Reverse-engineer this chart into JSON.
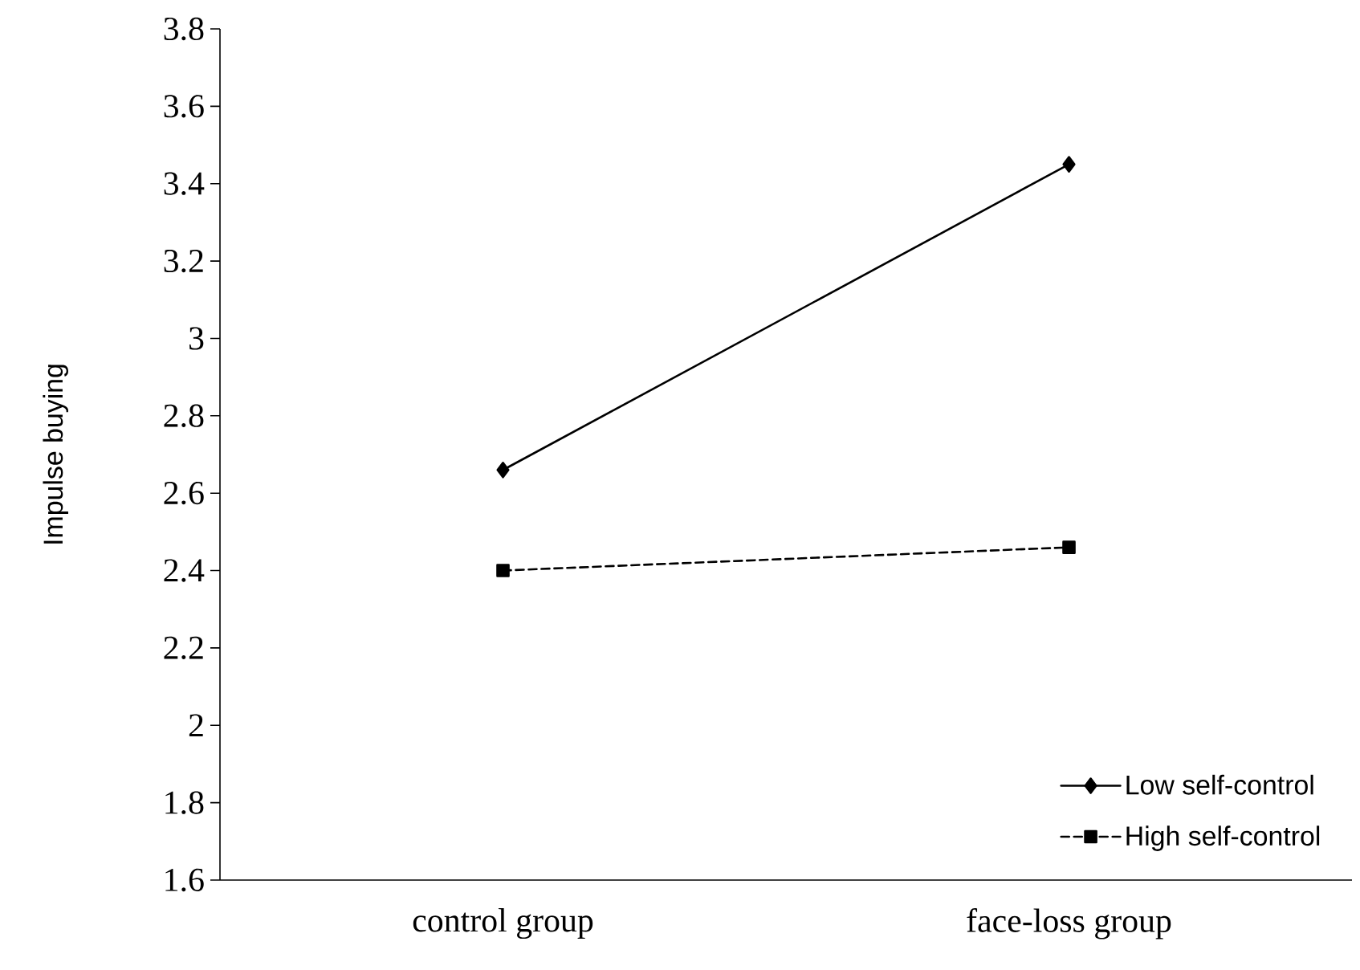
{
  "chart_data": {
    "type": "line",
    "ylabel": "Impulse buying",
    "categories": [
      "control group",
      "face-loss group"
    ],
    "series": [
      {
        "name": "Low self-control",
        "color": "#000000",
        "values": [
          2.66,
          3.45
        ],
        "marker": "diamond",
        "line_style": "solid"
      },
      {
        "name": "High self-control",
        "color": "#000000",
        "values": [
          2.4,
          2.46
        ],
        "marker": "square",
        "line_style": "dashed"
      }
    ],
    "ylim": [
      1.6,
      3.8
    ],
    "yticks": [
      1.6,
      1.8,
      2,
      2.2,
      2.4,
      2.6,
      2.8,
      3,
      3.2,
      3.4,
      3.6,
      3.8
    ],
    "grid": false,
    "legend": "bottom right"
  }
}
